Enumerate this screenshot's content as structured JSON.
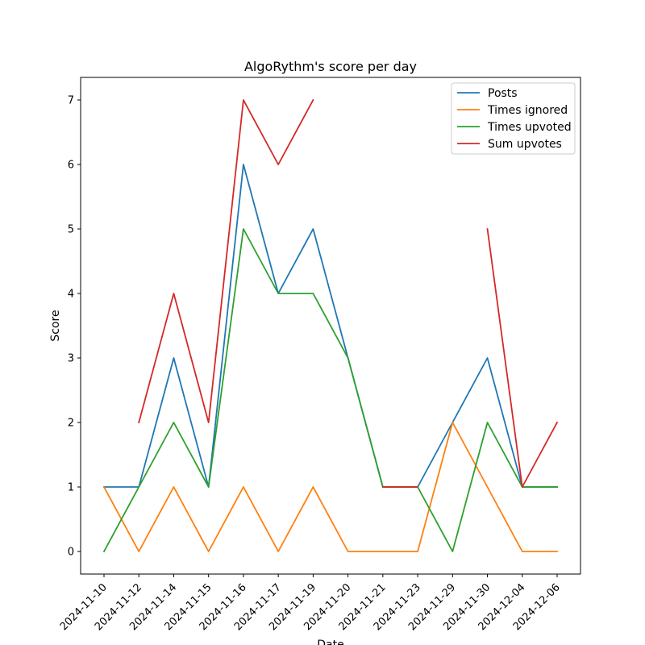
{
  "chart_data": {
    "type": "line",
    "title": "AlgoRythm's score per day",
    "xlabel": "Date",
    "ylabel": "Score",
    "ylim": [
      -0.35,
      7.35
    ],
    "yticks": [
      0,
      1,
      2,
      3,
      4,
      5,
      6,
      7
    ],
    "grid": false,
    "legend_position": "top-right",
    "categories": [
      "2024-11-10",
      "2024-11-12",
      "2024-11-14",
      "2024-11-15",
      "2024-11-16",
      "2024-11-17",
      "2024-11-19",
      "2024-11-20",
      "2024-11-21",
      "2024-11-23",
      "2024-11-29",
      "2024-11-30",
      "2024-12-04",
      "2024-12-06"
    ],
    "series": [
      {
        "name": "Posts",
        "color": "#1f77b4",
        "values": [
          1,
          1,
          3,
          1,
          6,
          4,
          5,
          3,
          1,
          1,
          2,
          3,
          1,
          1
        ]
      },
      {
        "name": "Times ignored",
        "color": "#ff7f0e",
        "values": [
          1,
          0,
          1,
          0,
          1,
          0,
          1,
          0,
          0,
          0,
          2,
          1,
          0,
          0
        ]
      },
      {
        "name": "Times upvoted",
        "color": "#2ca02c",
        "values": [
          0,
          1,
          2,
          1,
          5,
          4,
          4,
          3,
          1,
          1,
          0,
          2,
          1,
          1
        ]
      },
      {
        "name": "Sum upvotes",
        "color": "#d62728",
        "values": [
          null,
          2,
          4,
          2,
          7,
          6,
          7,
          null,
          1,
          1,
          null,
          5,
          1,
          2
        ]
      }
    ]
  }
}
